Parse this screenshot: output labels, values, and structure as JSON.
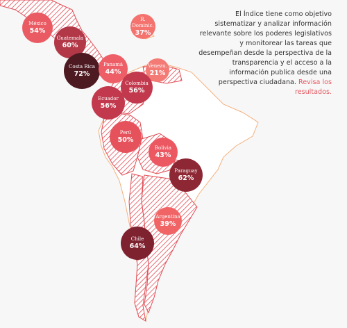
{
  "intro": {
    "text": "El Índice tiene como objetivo sistematizar y analizar información relevante sobre los poderes legislativos y monitorear las tareas que desempeñan desde la perspectiva de la transparencia y el acceso a la información publica desde una perspectiva ciudadana.",
    "link": "Revisa los resultados."
  },
  "legend_colors": {
    "low": "#f16a6e",
    "mid": "#c9404f",
    "high": "#8b2534",
    "top": "#4e1a22",
    "hatch": "#e04c55",
    "coast": "#f3b07e"
  },
  "countries": [
    {
      "name": "México",
      "value": "54%",
      "color": "#ea5a62"
    },
    {
      "name": "Guatemala",
      "value": "60%",
      "color": "#b23848"
    },
    {
      "name": "R. Dominic.",
      "value": "37%",
      "color": "#f4736f"
    },
    {
      "name": "Costa Rica",
      "value": "72%",
      "color": "#4e1a22"
    },
    {
      "name": "Panamá",
      "value": "44%",
      "color": "#ee5e66"
    },
    {
      "name": "Venezu.",
      "value": "21%",
      "color": "#f47a75"
    },
    {
      "name": "Colombia",
      "value": "56%",
      "color": "#c2384c"
    },
    {
      "name": "Ecuador",
      "value": "56%",
      "color": "#c2384c"
    },
    {
      "name": "Perú",
      "value": "50%",
      "color": "#e6525c"
    },
    {
      "name": "Bolivia",
      "value": "43%",
      "color": "#ec5862"
    },
    {
      "name": "Paraguay",
      "value": "62%",
      "color": "#8c2733"
    },
    {
      "name": "Argentina",
      "value": "39%",
      "color": "#f16466"
    },
    {
      "name": "Chile",
      "value": "64%",
      "color": "#7e2230"
    }
  ]
}
